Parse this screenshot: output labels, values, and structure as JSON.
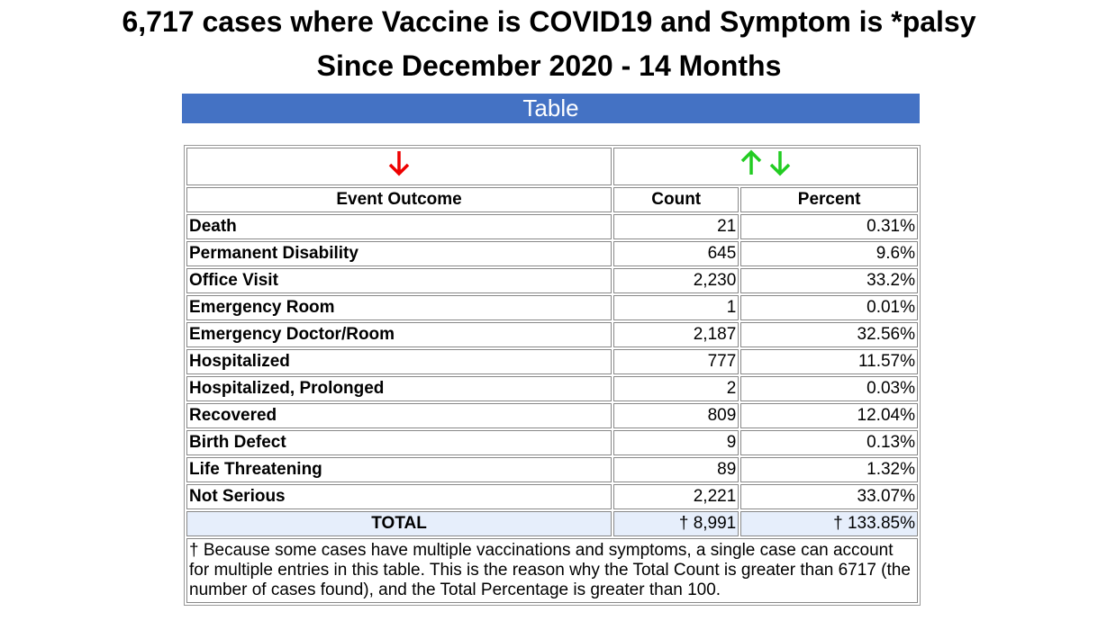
{
  "header": {
    "title": "6,717 cases where Vaccine is COVID19 and Symptom is *palsy",
    "subtitle": "Since December 2020 - 14 Months",
    "section": "Table"
  },
  "table": {
    "columns": [
      "Event Outcome",
      "Count",
      "Percent"
    ],
    "rows": [
      [
        "Death",
        "21",
        "0.31%"
      ],
      [
        "Permanent Disability",
        "645",
        "9.6%"
      ],
      [
        "Office Visit",
        "2,230",
        "33.2%"
      ],
      [
        "Emergency Room",
        "1",
        "0.01%"
      ],
      [
        "Emergency Doctor/Room",
        "2,187",
        "32.56%"
      ],
      [
        "Hospitalized",
        "777",
        "11.57%"
      ],
      [
        "Hospitalized, Prolonged",
        "2",
        "0.03%"
      ],
      [
        "Recovered",
        "809",
        "12.04%"
      ],
      [
        "Birth Defect",
        "9",
        "0.13%"
      ],
      [
        "Life Threatening",
        "89",
        "1.32%"
      ],
      [
        "Not Serious",
        "2,221",
        "33.07%"
      ]
    ],
    "total": [
      "TOTAL",
      "† 8,991",
      "† 133.85%"
    ],
    "footnote": "† Because some cases have multiple vaccinations and symptoms, a single case can account for multiple entries in this table. This is the reason why the Total Count is greater than 6717 (the number of cases found), and the Total Percentage is greater than 100."
  }
}
